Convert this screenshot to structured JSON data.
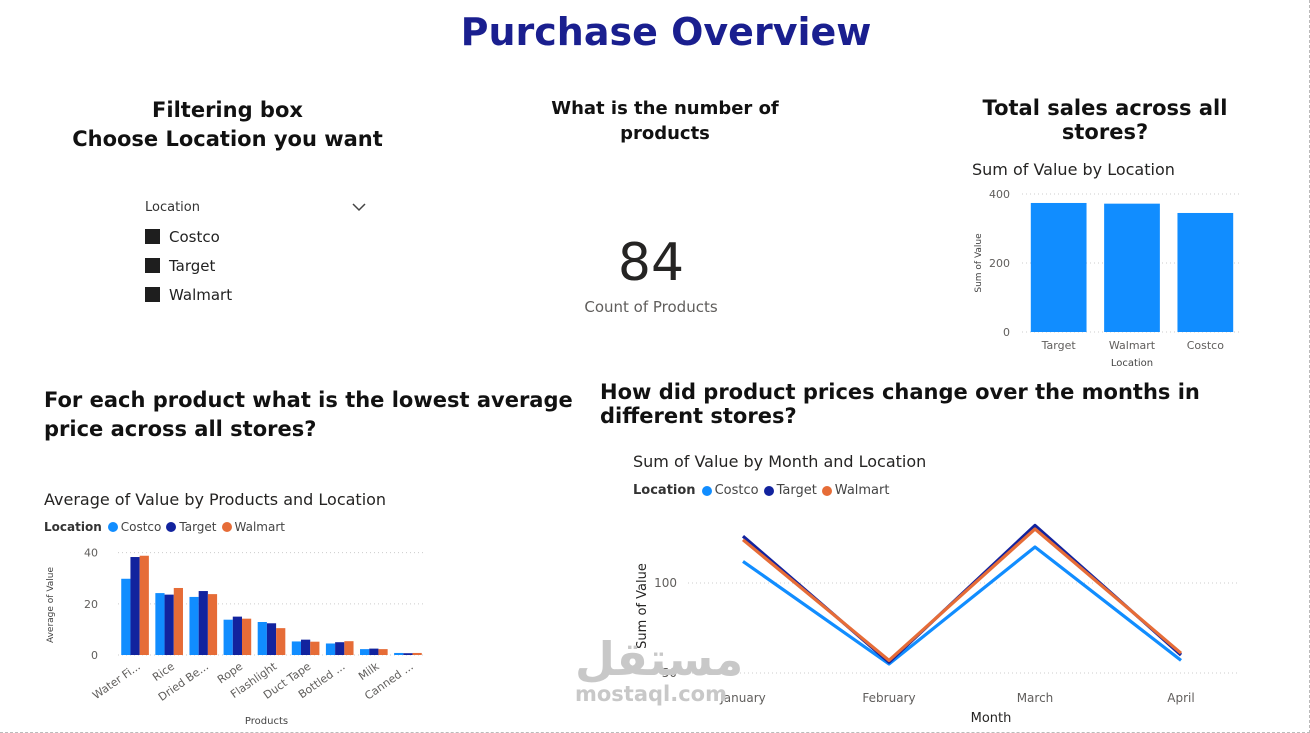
{
  "page": {
    "title": "Purchase Overview",
    "filter_title_line1": "Filtering box",
    "filter_title_line2": "Choose Location you want",
    "count_question_line1": "What is the number of",
    "count_question_line2": "products",
    "sales_question": "Total sales across all stores?",
    "lowest_question": "For each product what is the lowest average price across all stores?",
    "change_question": "How did product prices change over the months in different stores?"
  },
  "slicer": {
    "label": "Location",
    "items": [
      "Costco",
      "Target",
      "Walmart"
    ]
  },
  "card": {
    "value": "84",
    "label": "Count of Products"
  },
  "colors": {
    "costco": "#118dff",
    "target": "#12239e",
    "walmart": "#e66c37",
    "title": "#1a1f8f"
  },
  "watermark": {
    "arabic": "مستقل",
    "latin": "mostaql.com"
  },
  "chart_data": [
    {
      "id": "sales",
      "type": "bar",
      "title": "Sum of Value by Location",
      "xlabel": "Location",
      "ylabel": "Sum of Value",
      "categories": [
        "Target",
        "Walmart",
        "Costco"
      ],
      "values": [
        374,
        372,
        345
      ],
      "ylim": [
        0,
        400
      ],
      "yticks": [
        0,
        200,
        400
      ],
      "color": "#118dff"
    },
    {
      "id": "avg",
      "type": "bar",
      "title": "Average of Value by Products and Location",
      "xlabel": "Products",
      "ylabel": "Average of Value",
      "legend_title": "Location",
      "categories": [
        "Water Fi...",
        "Rice",
        "Dried Be...",
        "Rope",
        "Flashlight",
        "Duct Tape",
        "Bottled ...",
        "Milk",
        "Canned ..."
      ],
      "series": [
        {
          "name": "Costco",
          "values": [
            29.8,
            24.2,
            22.7,
            13.8,
            12.9,
            5.3,
            4.5,
            2.3,
            0.8
          ]
        },
        {
          "name": "Target",
          "values": [
            38.3,
            23.6,
            25.0,
            15.0,
            12.4,
            6.0,
            5.0,
            2.5,
            0.7
          ]
        },
        {
          "name": "Walmart",
          "values": [
            38.8,
            26.2,
            23.8,
            14.2,
            10.5,
            5.2,
            5.4,
            2.3,
            0.8
          ]
        }
      ],
      "ylim": [
        0,
        43
      ],
      "yticks": [
        0,
        20,
        40
      ]
    },
    {
      "id": "monthly",
      "type": "line",
      "title": "Sum of Value by Month and Location",
      "xlabel": "Month",
      "ylabel": "Sum of Value",
      "legend_title": "Location",
      "categories": [
        "January",
        "February",
        "March",
        "April"
      ],
      "series": [
        {
          "name": "Costco",
          "values": [
            112,
            55,
            120,
            57
          ]
        },
        {
          "name": "Target",
          "values": [
            126,
            56,
            132,
            60
          ]
        },
        {
          "name": "Walmart",
          "values": [
            124,
            57,
            130,
            61
          ]
        }
      ],
      "ylim": [
        45,
        135
      ],
      "yticks": [
        50,
        100
      ]
    }
  ]
}
